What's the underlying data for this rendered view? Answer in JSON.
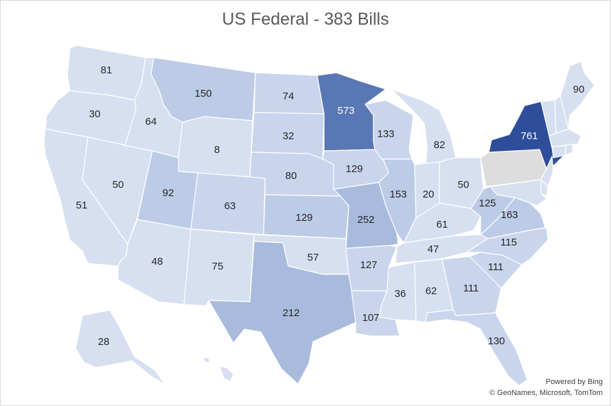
{
  "title": "US Federal - 383 Bills",
  "credits": {
    "line1": "Powered by Bing",
    "line2": "© GeoNames, Microsoft, TomTom"
  },
  "colors": {
    "c1": "#d7e0f1",
    "c2": "#c9d5ec",
    "c3": "#bccbe6",
    "c4": "#a9bbdc",
    "c5": "#5a77b5",
    "c6": "#2e4d9a",
    "nodata": "#dddddd"
  },
  "states": [
    {
      "id": "WA",
      "value": "81"
    },
    {
      "id": "OR",
      "value": "30"
    },
    {
      "id": "CA",
      "value": "51"
    },
    {
      "id": "NV",
      "value": "50"
    },
    {
      "id": "ID",
      "value": "64"
    },
    {
      "id": "MT",
      "value": "150"
    },
    {
      "id": "WY",
      "value": "8"
    },
    {
      "id": "UT",
      "value": "92"
    },
    {
      "id": "AZ",
      "value": "48"
    },
    {
      "id": "CO",
      "value": "63"
    },
    {
      "id": "NM",
      "value": "75"
    },
    {
      "id": "ND",
      "value": "74"
    },
    {
      "id": "SD",
      "value": "32"
    },
    {
      "id": "NE",
      "value": "80"
    },
    {
      "id": "KS",
      "value": "129"
    },
    {
      "id": "OK",
      "value": "57"
    },
    {
      "id": "TX",
      "value": "212"
    },
    {
      "id": "MN",
      "value": "573"
    },
    {
      "id": "IA",
      "value": "129"
    },
    {
      "id": "MO",
      "value": "252"
    },
    {
      "id": "AR",
      "value": "127"
    },
    {
      "id": "LA",
      "value": "107"
    },
    {
      "id": "WI",
      "value": "133"
    },
    {
      "id": "IL",
      "value": "153"
    },
    {
      "id": "MI",
      "value": "82"
    },
    {
      "id": "IN",
      "value": "20"
    },
    {
      "id": "OH",
      "value": "50"
    },
    {
      "id": "KY",
      "value": "61"
    },
    {
      "id": "TN",
      "value": "47"
    },
    {
      "id": "MS",
      "value": "36"
    },
    {
      "id": "AL",
      "value": "62"
    },
    {
      "id": "GA",
      "value": "111"
    },
    {
      "id": "FL",
      "value": "130"
    },
    {
      "id": "SC",
      "value": "111"
    },
    {
      "id": "NC",
      "value": "115"
    },
    {
      "id": "VA",
      "value": "163"
    },
    {
      "id": "WV",
      "value": "125"
    },
    {
      "id": "PA",
      "value": ""
    },
    {
      "id": "NY",
      "value": "761"
    },
    {
      "id": "ME",
      "value": "90"
    },
    {
      "id": "AK",
      "value": "28"
    },
    {
      "id": "HI",
      "value": ""
    },
    {
      "id": "NH",
      "value": ""
    },
    {
      "id": "VT",
      "value": ""
    },
    {
      "id": "MA",
      "value": ""
    },
    {
      "id": "CT",
      "value": ""
    },
    {
      "id": "RI",
      "value": ""
    },
    {
      "id": "NJ",
      "value": ""
    },
    {
      "id": "DE",
      "value": ""
    },
    {
      "id": "MD",
      "value": ""
    }
  ]
}
